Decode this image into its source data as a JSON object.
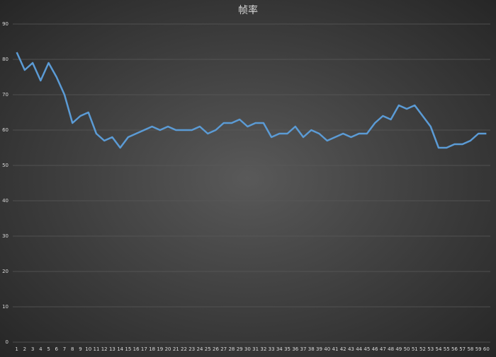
{
  "chart_data": {
    "type": "line",
    "title": "帧率",
    "categories": [
      "1",
      "2",
      "3",
      "4",
      "5",
      "6",
      "7",
      "8",
      "9",
      "10",
      "11",
      "12",
      "13",
      "14",
      "15",
      "16",
      "17",
      "18",
      "19",
      "20",
      "21",
      "22",
      "23",
      "24",
      "25",
      "26",
      "27",
      "28",
      "29",
      "30",
      "31",
      "32",
      "33",
      "34",
      "35",
      "36",
      "37",
      "38",
      "39",
      "40",
      "41",
      "42",
      "43",
      "44",
      "45",
      "46",
      "47",
      "48",
      "49",
      "50",
      "51",
      "52",
      "53",
      "54",
      "55",
      "56",
      "57",
      "58",
      "59",
      "60"
    ],
    "series": [
      {
        "name": "帧率",
        "color": "#5b9bd5",
        "values": [
          82,
          77,
          79,
          74,
          79,
          75,
          70,
          62,
          64,
          65,
          59,
          57,
          58,
          55,
          58,
          59,
          60,
          61,
          60,
          61,
          60,
          60,
          60,
          61,
          59,
          60,
          62,
          62,
          63,
          61,
          62,
          62,
          58,
          59,
          59,
          61,
          58,
          60,
          59,
          57,
          58,
          59,
          58,
          59,
          59,
          62,
          64,
          63,
          67,
          66,
          67,
          64,
          61,
          55,
          55,
          56,
          56,
          57,
          59,
          59
        ]
      }
    ],
    "ylim": [
      0,
      90
    ],
    "yticks": [
      0,
      10,
      20,
      30,
      40,
      50,
      60,
      70,
      80,
      90
    ],
    "grid": true
  }
}
